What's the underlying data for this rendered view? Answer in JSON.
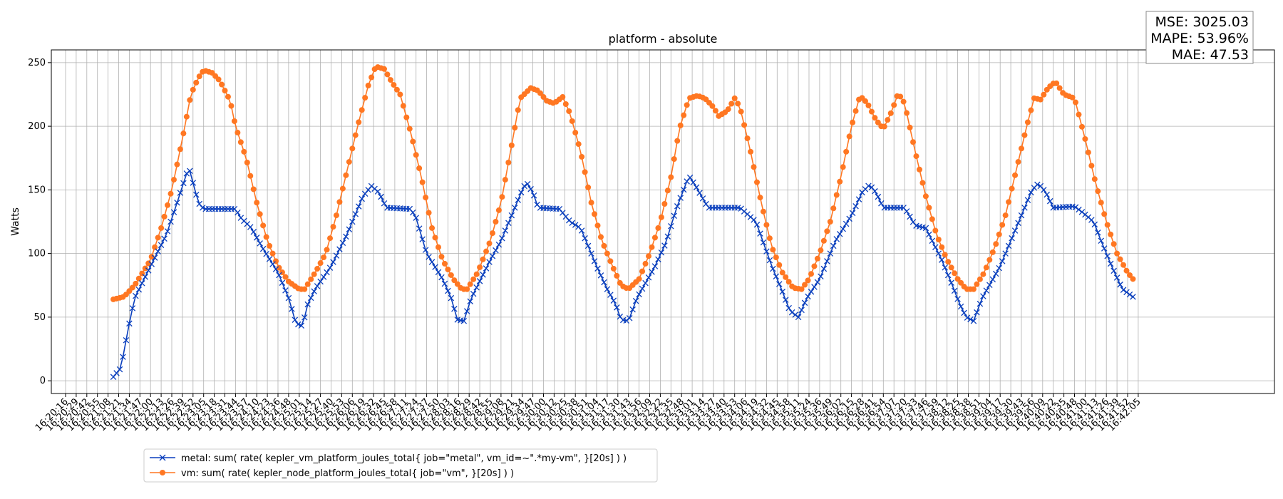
{
  "chart_data": {
    "type": "line",
    "title": "platform - absolute",
    "xlabel": "",
    "ylabel": "Watts",
    "ylim": [
      -10,
      260
    ],
    "yticks": [
      0,
      50,
      100,
      150,
      200,
      250
    ],
    "grid": true,
    "x_tick_labels": [
      "16:20:16",
      "16:20:29",
      "16:20:42",
      "16:20:55",
      "16:21:08",
      "16:21:21",
      "16:21:34",
      "16:21:47",
      "16:22:00",
      "16:22:13",
      "16:22:26",
      "16:22:39",
      "16:22:52",
      "16:23:05",
      "16:23:18",
      "16:23:31",
      "16:23:44",
      "16:23:57",
      "16:24:10",
      "16:24:23",
      "16:24:36",
      "16:24:48",
      "16:25:01",
      "16:25:14",
      "16:25:27",
      "16:25:40",
      "16:25:53",
      "16:26:06",
      "16:26:19",
      "16:26:32",
      "16:26:45",
      "16:26:58",
      "16:27:11",
      "16:27:24",
      "16:27:37",
      "16:27:50",
      "16:28:03",
      "16:28:16",
      "16:28:29",
      "16:28:42",
      "16:28:55",
      "16:29:08",
      "16:29:21",
      "16:29:34",
      "16:29:47",
      "16:30:00",
      "16:30:12",
      "16:30:25",
      "16:30:38",
      "16:30:51",
      "16:31:04",
      "16:31:17",
      "16:31:30",
      "16:31:43",
      "16:31:56",
      "16:32:09",
      "16:32:22",
      "16:32:35",
      "16:32:48",
      "16:33:01",
      "16:33:14",
      "16:33:27",
      "16:33:40",
      "16:33:53",
      "16:34:06",
      "16:34:19",
      "16:34:32",
      "16:34:45",
      "16:34:58",
      "16:35:11",
      "16:35:24",
      "16:35:36",
      "16:35:49",
      "16:36:02",
      "16:36:15",
      "16:36:28",
      "16:36:41",
      "16:36:54",
      "16:37:07",
      "16:37:20",
      "16:37:33",
      "16:37:46",
      "16:37:59",
      "16:38:12",
      "16:38:25",
      "16:38:38",
      "16:38:51",
      "16:39:04",
      "16:39:17",
      "16:39:30",
      "16:39:43",
      "16:39:56",
      "16:40:09",
      "16:40:22",
      "16:40:35",
      "16:40:48",
      "16:41:00",
      "16:41:13",
      "16:41:26",
      "16:41:39",
      "16:41:52",
      "16:42:05"
    ],
    "legend_position": "lower-left",
    "metrics": {
      "mse": "MSE: 3025.03",
      "mape": "MAPE: 53.96%",
      "mae": "MAE: 47.53"
    },
    "series": [
      {
        "name": "metal: sum( rate( kepler_vm_platform_joules_total{ job=\"metal\", vm_id=~\".*my-vm\", }[20s] ) )",
        "color": "#0a3fbd",
        "marker": "x",
        "keyframes": [
          [
            4.5,
            3
          ],
          [
            5.2,
            10
          ],
          [
            6.0,
            45
          ],
          [
            6.5,
            65
          ],
          [
            8.0,
            90
          ],
          [
            9.5,
            115
          ],
          [
            10.5,
            140
          ],
          [
            11.6,
            168
          ],
          [
            12.5,
            140
          ],
          [
            13.0,
            135
          ],
          [
            16.0,
            135
          ],
          [
            16.5,
            128
          ],
          [
            17.5,
            120
          ],
          [
            18.5,
            105
          ],
          [
            20.0,
            85
          ],
          [
            21.0,
            65
          ],
          [
            21.7,
            45
          ],
          [
            22.3,
            43
          ],
          [
            22.8,
            60
          ],
          [
            23.5,
            72
          ],
          [
            25.0,
            90
          ],
          [
            26.5,
            115
          ],
          [
            28.0,
            145
          ],
          [
            28.8,
            153
          ],
          [
            29.5,
            148
          ],
          [
            30.2,
            136
          ],
          [
            32.5,
            135
          ],
          [
            33.0,
            128
          ],
          [
            34.0,
            100
          ],
          [
            35.5,
            80
          ],
          [
            36.3,
            65
          ],
          [
            36.9,
            48
          ],
          [
            37.5,
            47
          ],
          [
            38.2,
            65
          ],
          [
            40.0,
            95
          ],
          [
            41.0,
            110
          ],
          [
            42.0,
            130
          ],
          [
            43.0,
            150
          ],
          [
            43.4,
            156
          ],
          [
            44.0,
            148
          ],
          [
            44.5,
            136
          ],
          [
            46.5,
            135
          ],
          [
            47.5,
            125
          ],
          [
            48.5,
            120
          ],
          [
            50.0,
            90
          ],
          [
            51.0,
            72
          ],
          [
            51.8,
            60
          ],
          [
            52.3,
            48
          ],
          [
            53.0,
            47
          ],
          [
            53.8,
            65
          ],
          [
            55.5,
            90
          ],
          [
            56.5,
            108
          ],
          [
            57.5,
            135
          ],
          [
            58.7,
            161
          ],
          [
            59.4,
            152
          ],
          [
            60.5,
            136
          ],
          [
            63.5,
            136
          ],
          [
            65.0,
            125
          ],
          [
            66.5,
            90
          ],
          [
            67.5,
            70
          ],
          [
            68.2,
            55
          ],
          [
            69.0,
            50
          ],
          [
            69.8,
            65
          ],
          [
            71.0,
            80
          ],
          [
            72.5,
            110
          ],
          [
            74.0,
            130
          ],
          [
            75.0,
            148
          ],
          [
            75.7,
            154
          ],
          [
            76.3,
            148
          ],
          [
            77.0,
            136
          ],
          [
            79.0,
            136
          ],
          [
            80.0,
            122
          ],
          [
            81.0,
            120
          ],
          [
            82.5,
            95
          ],
          [
            83.5,
            75
          ],
          [
            84.2,
            60
          ],
          [
            84.8,
            50
          ],
          [
            85.5,
            47
          ],
          [
            86.3,
            65
          ],
          [
            88.0,
            90
          ],
          [
            90.0,
            130
          ],
          [
            91.0,
            150
          ],
          [
            91.6,
            155
          ],
          [
            92.3,
            148
          ],
          [
            93.0,
            136
          ],
          [
            95.0,
            137
          ],
          [
            95.8,
            132
          ],
          [
            96.8,
            125
          ],
          [
            97.5,
            110
          ],
          [
            98.5,
            90
          ],
          [
            99.5,
            72
          ],
          [
            100.5,
            66
          ]
        ]
      },
      {
        "name": "vm: sum( rate( kepler_node_platform_joules_total{ job=\"vm\", }[20s] ) )",
        "color": "#ff7722",
        "marker": "o",
        "keyframes": [
          [
            4.5,
            64
          ],
          [
            5.5,
            66
          ],
          [
            6.5,
            75
          ],
          [
            8.0,
            95
          ],
          [
            9.0,
            120
          ],
          [
            10.0,
            150
          ],
          [
            11.0,
            190
          ],
          [
            11.8,
            225
          ],
          [
            12.5,
            238
          ],
          [
            13.0,
            244
          ],
          [
            13.8,
            242
          ],
          [
            14.5,
            236
          ],
          [
            15.5,
            220
          ],
          [
            16.0,
            200
          ],
          [
            17.0,
            175
          ],
          [
            18.0,
            140
          ],
          [
            19.0,
            110
          ],
          [
            20.0,
            90
          ],
          [
            21.0,
            78
          ],
          [
            22.0,
            72
          ],
          [
            22.5,
            72
          ],
          [
            23.5,
            85
          ],
          [
            24.5,
            100
          ],
          [
            25.5,
            130
          ],
          [
            26.5,
            165
          ],
          [
            27.5,
            200
          ],
          [
            28.5,
            232
          ],
          [
            29.2,
            247
          ],
          [
            30.0,
            245
          ],
          [
            30.7,
            235
          ],
          [
            31.5,
            225
          ],
          [
            32.5,
            195
          ],
          [
            33.5,
            160
          ],
          [
            34.5,
            120
          ],
          [
            35.5,
            95
          ],
          [
            36.5,
            80
          ],
          [
            37.3,
            72
          ],
          [
            37.8,
            72
          ],
          [
            38.8,
            85
          ],
          [
            40.0,
            110
          ],
          [
            41.0,
            140
          ],
          [
            42.0,
            185
          ],
          [
            42.8,
            222
          ],
          [
            43.8,
            230
          ],
          [
            44.5,
            228
          ],
          [
            45.3,
            220
          ],
          [
            46.0,
            218
          ],
          [
            46.8,
            223
          ],
          [
            47.5,
            210
          ],
          [
            48.5,
            180
          ],
          [
            49.5,
            140
          ],
          [
            50.5,
            110
          ],
          [
            51.5,
            90
          ],
          [
            52.3,
            75
          ],
          [
            53.0,
            72
          ],
          [
            54.0,
            80
          ],
          [
            55.0,
            100
          ],
          [
            56.0,
            125
          ],
          [
            57.0,
            160
          ],
          [
            57.8,
            198
          ],
          [
            58.7,
            222
          ],
          [
            59.5,
            224
          ],
          [
            60.2,
            222
          ],
          [
            61.0,
            215
          ],
          [
            61.5,
            208
          ],
          [
            62.3,
            212
          ],
          [
            63.0,
            222
          ],
          [
            63.5,
            215
          ],
          [
            64.5,
            180
          ],
          [
            65.5,
            140
          ],
          [
            66.5,
            105
          ],
          [
            67.5,
            85
          ],
          [
            68.5,
            73
          ],
          [
            69.3,
            72
          ],
          [
            70.0,
            80
          ],
          [
            71.0,
            100
          ],
          [
            72.0,
            125
          ],
          [
            73.0,
            160
          ],
          [
            74.0,
            200
          ],
          [
            74.8,
            224
          ],
          [
            75.5,
            218
          ],
          [
            76.3,
            205
          ],
          [
            77.0,
            198
          ],
          [
            77.8,
            212
          ],
          [
            78.4,
            226
          ],
          [
            79.0,
            218
          ],
          [
            80.0,
            180
          ],
          [
            81.0,
            145
          ],
          [
            82.0,
            115
          ],
          [
            83.0,
            95
          ],
          [
            84.0,
            80
          ],
          [
            84.8,
            72
          ],
          [
            85.5,
            72
          ],
          [
            86.5,
            85
          ],
          [
            87.5,
            105
          ],
          [
            88.5,
            130
          ],
          [
            89.5,
            165
          ],
          [
            90.5,
            200
          ],
          [
            91.2,
            222
          ],
          [
            91.8,
            221
          ],
          [
            92.5,
            230
          ],
          [
            93.2,
            235
          ],
          [
            94.0,
            225
          ],
          [
            95.0,
            222
          ],
          [
            96.0,
            190
          ],
          [
            97.0,
            155
          ],
          [
            98.0,
            125
          ],
          [
            99.0,
            100
          ],
          [
            100.0,
            85
          ],
          [
            100.5,
            80
          ]
        ]
      }
    ]
  }
}
